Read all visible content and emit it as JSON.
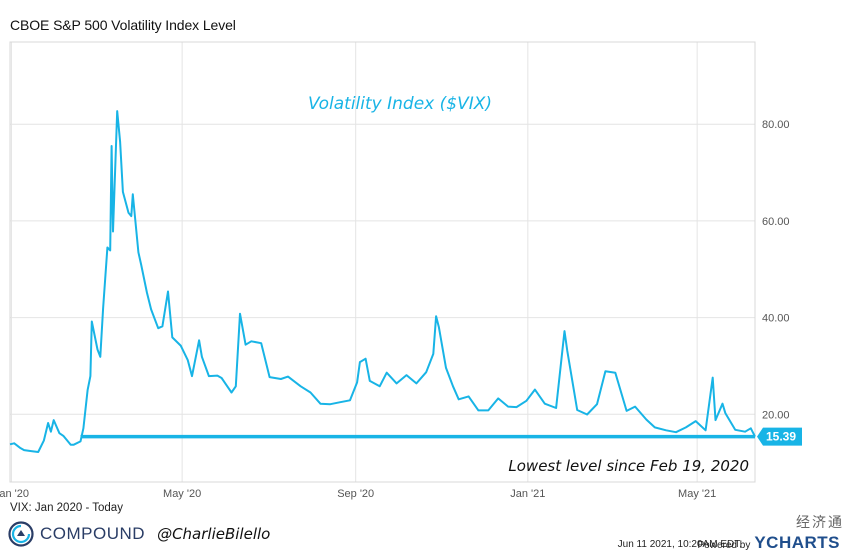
{
  "chart_title": "CBOE S&P 500 Volatility Index Level",
  "footer": {
    "range": "VIX: Jan 2020 - Today",
    "brand": "COMPOUND",
    "handle": "@CharlieBilello",
    "timestamp": "Jun 11 2021, 10:20AM EDT.",
    "powered_by": "Powered by",
    "ycharts": "YCHARTS",
    "watermark": "经济通"
  },
  "colors": {
    "series": "#18b4e6",
    "label_bg": "#18b4e6",
    "brand": "#2a3d66"
  },
  "chart_data": {
    "type": "line",
    "title": "Volatility Index ($VIX)",
    "xlabel": "",
    "ylabel": "",
    "x_range": [
      "2019-12-31",
      "2021-06-11"
    ],
    "ylim": [
      6,
      97
    ],
    "yticks": [
      20,
      40,
      60,
      80
    ],
    "ytick_labels": [
      "20.00",
      "40.00",
      "60.00",
      "80.00"
    ],
    "xticks": [
      "2020-01-01",
      "2020-05-01",
      "2020-09-01",
      "2021-01-01",
      "2021-05-01"
    ],
    "xtick_labels": [
      "Jan '20",
      "May '20",
      "Sep '20",
      "Jan '21",
      "May '21"
    ],
    "grid": true,
    "last_value": 15.39,
    "last_value_label": "15.39",
    "reference_line": {
      "value": 15.39,
      "label": "Lowest level since Feb 19, 2020"
    },
    "series": [
      {
        "points": [
          [
            "2019-12-31",
            13.8
          ],
          [
            "2020-01-03",
            14.0
          ],
          [
            "2020-01-07",
            13.1
          ],
          [
            "2020-01-10",
            12.6
          ],
          [
            "2020-01-15",
            12.4
          ],
          [
            "2020-01-20",
            12.2
          ],
          [
            "2020-01-24",
            14.6
          ],
          [
            "2020-01-27",
            18.2
          ],
          [
            "2020-01-29",
            16.4
          ],
          [
            "2020-01-31",
            18.8
          ],
          [
            "2020-02-04",
            16.1
          ],
          [
            "2020-02-07",
            15.5
          ],
          [
            "2020-02-12",
            13.7
          ],
          [
            "2020-02-14",
            13.7
          ],
          [
            "2020-02-19",
            14.4
          ],
          [
            "2020-02-21",
            17.1
          ],
          [
            "2020-02-24",
            25.0
          ],
          [
            "2020-02-26",
            27.9
          ],
          [
            "2020-02-27",
            39.2
          ],
          [
            "2020-03-02",
            33.4
          ],
          [
            "2020-03-04",
            31.9
          ],
          [
            "2020-03-06",
            41.9
          ],
          [
            "2020-03-09",
            54.5
          ],
          [
            "2020-03-11",
            53.9
          ],
          [
            "2020-03-12",
            75.5
          ],
          [
            "2020-03-13",
            57.8
          ],
          [
            "2020-03-16",
            82.7
          ],
          [
            "2020-03-18",
            76.4
          ],
          [
            "2020-03-20",
            66.0
          ],
          [
            "2020-03-24",
            61.7
          ],
          [
            "2020-03-26",
            61.0
          ],
          [
            "2020-03-27",
            65.5
          ],
          [
            "2020-03-31",
            53.5
          ],
          [
            "2020-04-02",
            50.9
          ],
          [
            "2020-04-06",
            45.2
          ],
          [
            "2020-04-09",
            41.7
          ],
          [
            "2020-04-14",
            37.8
          ],
          [
            "2020-04-17",
            38.2
          ],
          [
            "2020-04-21",
            45.4
          ],
          [
            "2020-04-24",
            35.9
          ],
          [
            "2020-04-30",
            34.2
          ],
          [
            "2020-05-05",
            31.2
          ],
          [
            "2020-05-08",
            27.9
          ],
          [
            "2020-05-13",
            35.3
          ],
          [
            "2020-05-15",
            31.9
          ],
          [
            "2020-05-20",
            27.9
          ],
          [
            "2020-05-26",
            28.0
          ],
          [
            "2020-05-29",
            27.5
          ],
          [
            "2020-06-05",
            24.5
          ],
          [
            "2020-06-08",
            25.8
          ],
          [
            "2020-06-11",
            40.8
          ],
          [
            "2020-06-15",
            34.4
          ],
          [
            "2020-06-19",
            35.1
          ],
          [
            "2020-06-26",
            34.7
          ],
          [
            "2020-07-02",
            27.7
          ],
          [
            "2020-07-10",
            27.3
          ],
          [
            "2020-07-15",
            27.8
          ],
          [
            "2020-07-24",
            25.8
          ],
          [
            "2020-07-31",
            24.5
          ],
          [
            "2020-08-07",
            22.2
          ],
          [
            "2020-08-14",
            22.1
          ],
          [
            "2020-08-21",
            22.5
          ],
          [
            "2020-08-28",
            22.9
          ],
          [
            "2020-09-02",
            26.6
          ],
          [
            "2020-09-04",
            30.8
          ],
          [
            "2020-09-08",
            31.5
          ],
          [
            "2020-09-11",
            26.9
          ],
          [
            "2020-09-18",
            25.8
          ],
          [
            "2020-09-23",
            28.6
          ],
          [
            "2020-09-30",
            26.4
          ],
          [
            "2020-10-07",
            28.1
          ],
          [
            "2020-10-14",
            26.4
          ],
          [
            "2020-10-21",
            28.7
          ],
          [
            "2020-10-26",
            32.5
          ],
          [
            "2020-10-28",
            40.3
          ],
          [
            "2020-10-30",
            38.0
          ],
          [
            "2020-11-04",
            29.6
          ],
          [
            "2020-11-09",
            25.8
          ],
          [
            "2020-11-13",
            23.1
          ],
          [
            "2020-11-20",
            23.7
          ],
          [
            "2020-11-27",
            20.8
          ],
          [
            "2020-12-04",
            20.8
          ],
          [
            "2020-12-11",
            23.3
          ],
          [
            "2020-12-18",
            21.6
          ],
          [
            "2020-12-24",
            21.5
          ],
          [
            "2020-12-31",
            22.8
          ],
          [
            "2021-01-06",
            25.1
          ],
          [
            "2021-01-13",
            22.2
          ],
          [
            "2021-01-21",
            21.3
          ],
          [
            "2021-01-27",
            37.2
          ],
          [
            "2021-01-29",
            33.1
          ],
          [
            "2021-02-05",
            20.9
          ],
          [
            "2021-02-12",
            19.97
          ],
          [
            "2021-02-19",
            22.1
          ],
          [
            "2021-02-25",
            28.9
          ],
          [
            "2021-03-04",
            28.6
          ],
          [
            "2021-03-12",
            20.7
          ],
          [
            "2021-03-18",
            21.6
          ],
          [
            "2021-03-26",
            18.9
          ],
          [
            "2021-04-01",
            17.3
          ],
          [
            "2021-04-09",
            16.7
          ],
          [
            "2021-04-16",
            16.3
          ],
          [
            "2021-04-23",
            17.3
          ],
          [
            "2021-04-30",
            18.6
          ],
          [
            "2021-05-07",
            16.7
          ],
          [
            "2021-05-12",
            27.6
          ],
          [
            "2021-05-14",
            18.8
          ],
          [
            "2021-05-19",
            22.2
          ],
          [
            "2021-05-21",
            20.2
          ],
          [
            "2021-05-28",
            16.8
          ],
          [
            "2021-06-04",
            16.4
          ],
          [
            "2021-06-08",
            17.1
          ],
          [
            "2021-06-11",
            15.39
          ]
        ]
      }
    ]
  }
}
